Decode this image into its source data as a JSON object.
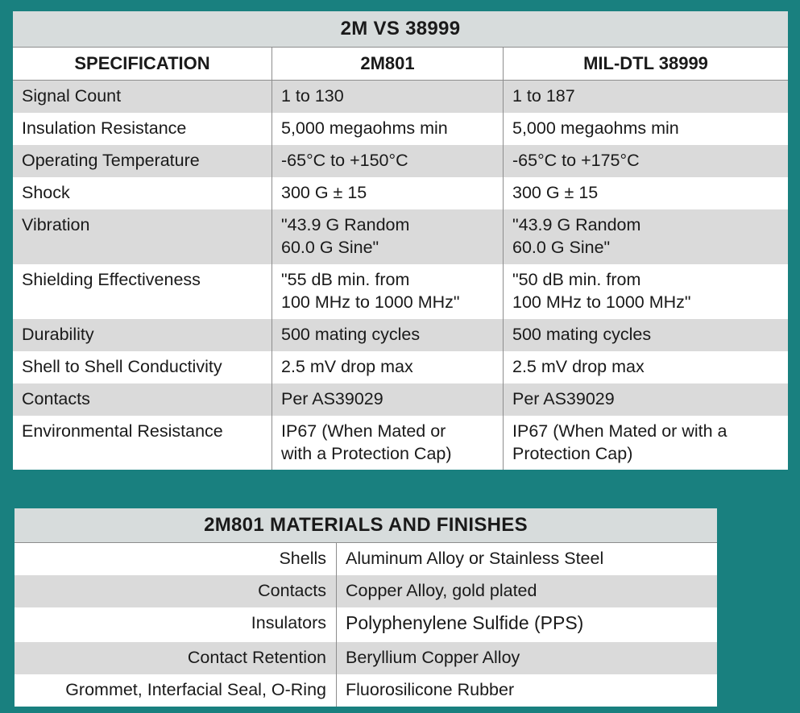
{
  "comparison": {
    "title": "2M VS 38999",
    "headers": [
      "SPECIFICATION",
      "2M801",
      "MIL-DTL 38999"
    ],
    "rows": [
      [
        "Signal Count",
        "1 to 130",
        "1 to 187"
      ],
      [
        "Insulation Resistance",
        "5,000 megaohms min",
        "5,000 megaohms min"
      ],
      [
        "Operating Temperature",
        "-65°C to +150°C",
        "-65°C to +175°C"
      ],
      [
        "Shock",
        "300 G ± 15",
        "300 G ± 15"
      ],
      [
        "Vibration",
        "\"43.9 G Random\n60.0 G Sine\"",
        "\"43.9 G Random\n60.0 G Sine\""
      ],
      [
        "Shielding Effectiveness",
        "\"55 dB min. from\n100 MHz to 1000 MHz\"",
        "\"50 dB min. from\n100 MHz to 1000 MHz\""
      ],
      [
        "Durability",
        "500 mating cycles",
        "500 mating cycles"
      ],
      [
        "Shell to Shell Conductivity",
        "2.5 mV drop max",
        "2.5 mV drop max"
      ],
      [
        "Contacts",
        "Per AS39029",
        "Per AS39029"
      ],
      [
        "Environmental Resistance",
        "IP67 (When Mated or\nwith a Protection Cap)",
        "IP67 (When Mated or with a\nProtection Cap)"
      ]
    ]
  },
  "materials": {
    "title": "2M801 MATERIALS AND FINISHES",
    "rows": [
      [
        "Shells",
        "Aluminum Alloy or Stainless Steel"
      ],
      [
        "Contacts",
        "Copper Alloy, gold plated"
      ],
      [
        "Insulators",
        "Polyphenylene Sulfide (PPS)"
      ],
      [
        "Contact Retention",
        "Beryllium Copper Alloy"
      ],
      [
        "Grommet, Interfacial Seal, O-Ring",
        "Fluorosilicone Rubber"
      ]
    ]
  },
  "colors": {
    "background": "#19807f",
    "title_bar": "#d7dcdc",
    "stripe": "#dadada",
    "border": "#8d8d8d"
  }
}
